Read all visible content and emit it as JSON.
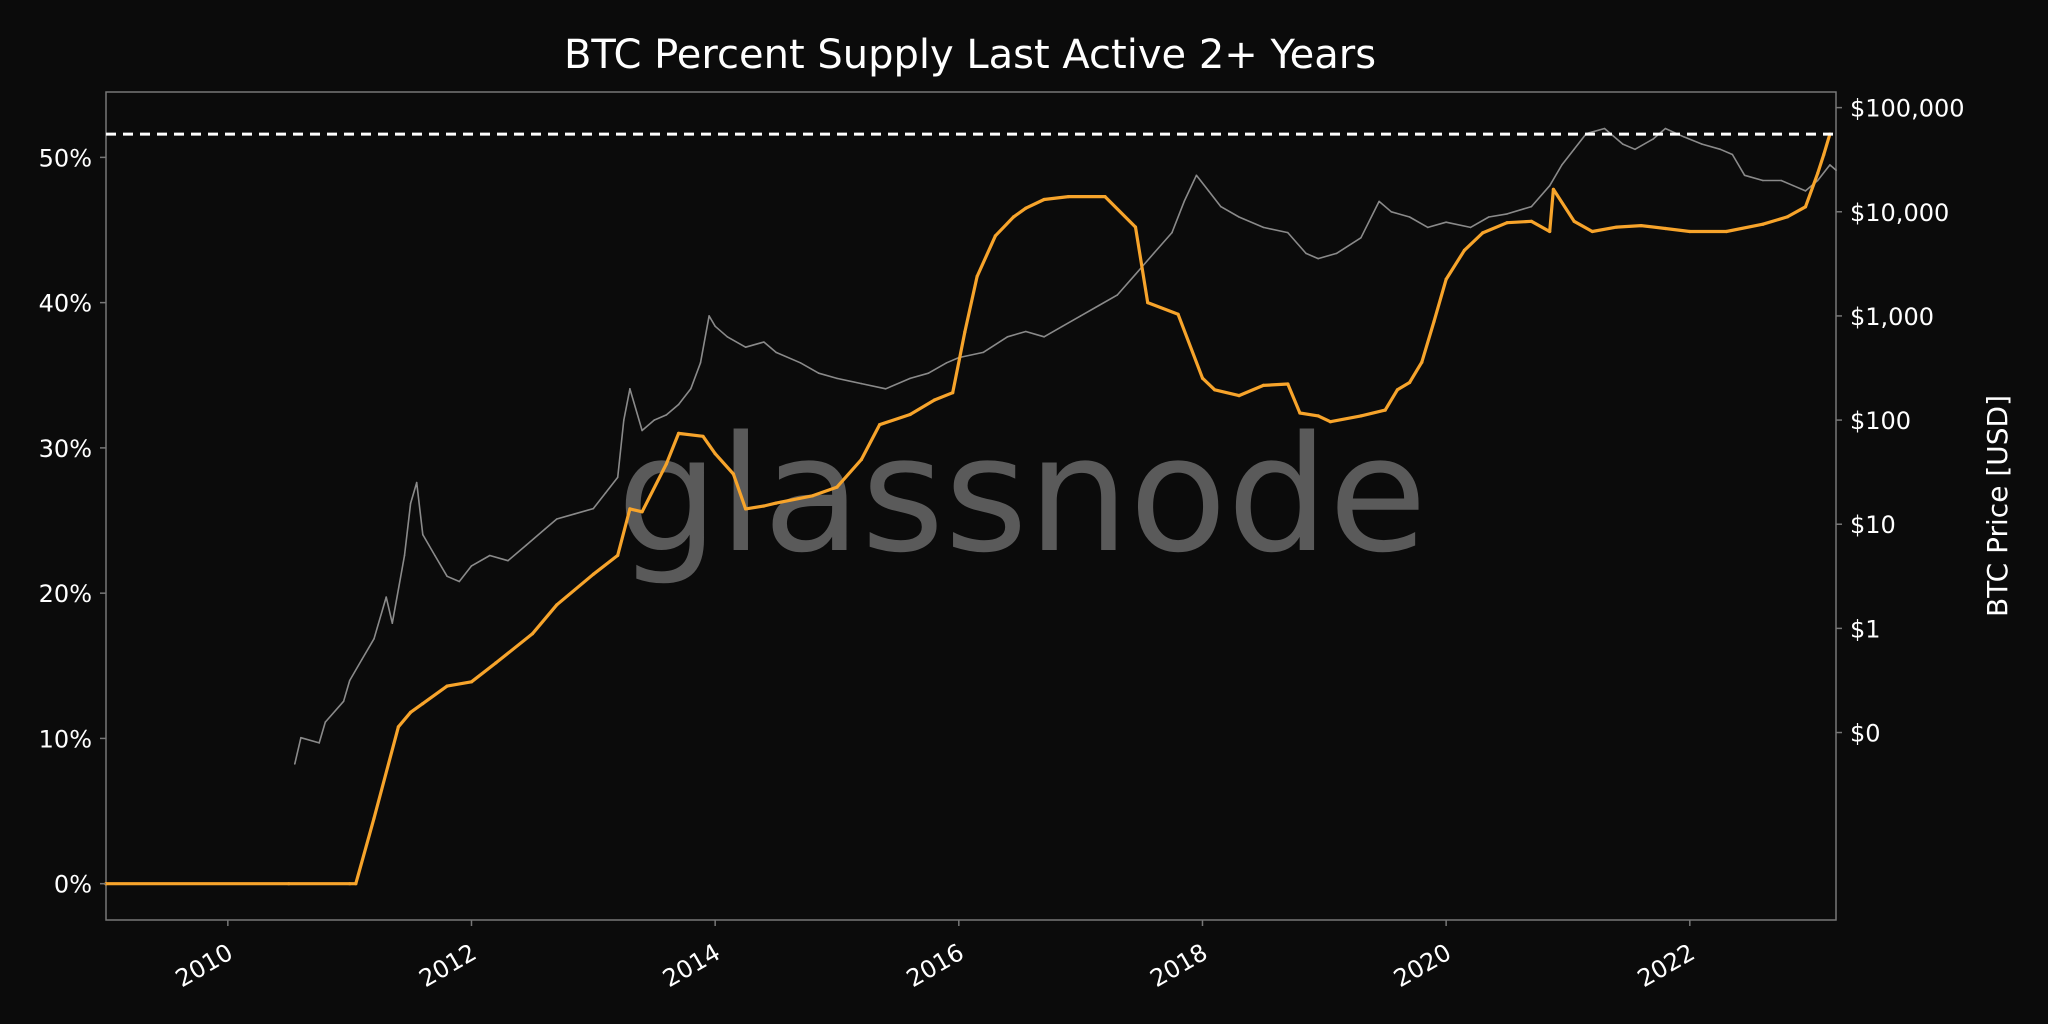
{
  "chart_data": {
    "type": "line",
    "title": "BTC Percent Supply Last Active 2+ Years",
    "watermark": "glassnode",
    "xlabel": "",
    "ylabel_left": "",
    "ylabel_right": "BTC Price [USD]",
    "xlim": [
      2009.0,
      2023.2
    ],
    "ylim_left": [
      -2.5,
      54.5
    ],
    "ylim_right_log10": [
      -2.8,
      5.15
    ],
    "x_ticks": [
      2010,
      2012,
      2014,
      2016,
      2018,
      2020,
      2022
    ],
    "x_tick_labels": [
      "2010",
      "2012",
      "2014",
      "2016",
      "2018",
      "2020",
      "2022"
    ],
    "y_left_ticks": [
      0,
      10,
      20,
      30,
      40,
      50
    ],
    "y_left_tick_labels": [
      "0%",
      "10%",
      "20%",
      "30%",
      "40%",
      "50%"
    ],
    "y_right_ticks_log10": [
      -1,
      0,
      1,
      2,
      3,
      4,
      5
    ],
    "y_right_tick_labels": [
      "$0",
      "$1",
      "$10",
      "$100",
      "$1,000",
      "$10,000",
      "$100,000"
    ],
    "reference_line": {
      "axis": "left",
      "value": 51.6,
      "style": "dashed",
      "color": "#ffffff"
    },
    "colors": {
      "background": "#0b0b0b",
      "supply": "#f7a42b",
      "price": "#8a8a8a",
      "frame": "#777777"
    },
    "series": [
      {
        "name": "Percent Supply Last Active 2+ Years",
        "axis": "left",
        "color": "#f7a42b",
        "x": [
          2009.0,
          2010.5,
          2011.0,
          2011.05,
          2011.2,
          2011.4,
          2011.5,
          2011.6,
          2011.8,
          2012.0,
          2012.2,
          2012.5,
          2012.7,
          2013.0,
          2013.2,
          2013.3,
          2013.4,
          2013.6,
          2013.7,
          2013.9,
          2014.0,
          2014.15,
          2014.25,
          2014.4,
          2014.5,
          2014.8,
          2015.0,
          2015.2,
          2015.35,
          2015.6,
          2015.8,
          2015.95,
          2016.05,
          2016.15,
          2016.3,
          2016.45,
          2016.55,
          2016.7,
          2016.9,
          2017.2,
          2017.45,
          2017.55,
          2017.8,
          2018.0,
          2018.1,
          2018.3,
          2018.5,
          2018.7,
          2018.8,
          2018.95,
          2019.05,
          2019.3,
          2019.5,
          2019.6,
          2019.7,
          2019.8,
          2019.9,
          2020.0,
          2020.15,
          2020.3,
          2020.5,
          2020.7,
          2020.85,
          2020.88,
          2021.05,
          2021.2,
          2021.4,
          2021.6,
          2021.8,
          2022.0,
          2022.3,
          2022.6,
          2022.8,
          2022.95,
          2023.05,
          2023.1,
          2023.15
        ],
        "values": [
          0,
          0,
          0,
          0,
          4.5,
          10.8,
          11.8,
          12.4,
          13.6,
          13.9,
          15.2,
          17.2,
          19.2,
          21.3,
          22.6,
          25.8,
          25.6,
          28.9,
          31.0,
          30.8,
          29.6,
          28.2,
          25.8,
          26.0,
          26.2,
          26.7,
          27.3,
          29.2,
          31.6,
          32.3,
          33.3,
          33.8,
          38.0,
          41.8,
          44.6,
          45.9,
          46.5,
          47.1,
          47.3,
          47.3,
          45.2,
          40.0,
          39.2,
          34.8,
          34.0,
          33.6,
          34.3,
          34.4,
          32.4,
          32.2,
          31.8,
          32.2,
          32.6,
          34.0,
          34.5,
          35.9,
          38.7,
          41.6,
          43.6,
          44.8,
          45.5,
          45.6,
          44.9,
          47.8,
          45.6,
          44.9,
          45.2,
          45.3,
          45.1,
          44.9,
          44.9,
          45.4,
          45.9,
          46.6,
          48.9,
          50.2,
          51.6
        ]
      },
      {
        "name": "BTC Price",
        "axis": "right",
        "color": "#8a8a8a",
        "x": [
          2010.55,
          2010.6,
          2010.75,
          2010.8,
          2010.95,
          2011.0,
          2011.1,
          2011.2,
          2011.3,
          2011.35,
          2011.45,
          2011.5,
          2011.55,
          2011.6,
          2011.7,
          2011.8,
          2011.9,
          2012.0,
          2012.15,
          2012.3,
          2012.45,
          2012.6,
          2012.7,
          2012.85,
          2013.0,
          2013.1,
          2013.2,
          2013.25,
          2013.3,
          2013.4,
          2013.5,
          2013.6,
          2013.7,
          2013.8,
          2013.88,
          2013.95,
          2014.0,
          2014.1,
          2014.25,
          2014.4,
          2014.5,
          2014.7,
          2014.85,
          2015.0,
          2015.2,
          2015.4,
          2015.6,
          2015.75,
          2015.9,
          2016.0,
          2016.2,
          2016.4,
          2016.55,
          2016.7,
          2016.85,
          2017.0,
          2017.15,
          2017.3,
          2017.45,
          2017.6,
          2017.75,
          2017.85,
          2017.95,
          2018.05,
          2018.15,
          2018.3,
          2018.5,
          2018.7,
          2018.85,
          2018.95,
          2019.1,
          2019.3,
          2019.45,
          2019.55,
          2019.7,
          2019.85,
          2020.0,
          2020.2,
          2020.35,
          2020.5,
          2020.7,
          2020.85,
          2020.95,
          2021.05,
          2021.15,
          2021.3,
          2021.45,
          2021.55,
          2021.7,
          2021.8,
          2021.95,
          2022.1,
          2022.25,
          2022.35,
          2022.45,
          2022.6,
          2022.75,
          2022.85,
          2022.95,
          2023.05,
          2023.15,
          2023.2
        ],
        "values_log10": [
          -1.3,
          -1.05,
          -1.1,
          -0.9,
          -0.7,
          -0.5,
          -0.3,
          -0.1,
          0.3,
          0.05,
          0.7,
          1.2,
          1.4,
          0.9,
          0.7,
          0.5,
          0.45,
          0.6,
          0.7,
          0.65,
          0.8,
          0.95,
          1.05,
          1.1,
          1.15,
          1.3,
          1.45,
          2.0,
          2.3,
          1.9,
          2.0,
          2.05,
          2.15,
          2.3,
          2.55,
          3.0,
          2.9,
          2.8,
          2.7,
          2.75,
          2.65,
          2.55,
          2.45,
          2.4,
          2.35,
          2.3,
          2.4,
          2.45,
          2.55,
          2.6,
          2.65,
          2.8,
          2.85,
          2.8,
          2.9,
          3.0,
          3.1,
          3.2,
          3.4,
          3.6,
          3.8,
          4.1,
          4.35,
          4.2,
          4.05,
          3.95,
          3.85,
          3.8,
          3.6,
          3.55,
          3.6,
          3.75,
          4.1,
          4.0,
          3.95,
          3.85,
          3.9,
          3.85,
          3.95,
          3.98,
          4.05,
          4.25,
          4.45,
          4.6,
          4.75,
          4.8,
          4.65,
          4.6,
          4.7,
          4.8,
          4.72,
          4.65,
          4.6,
          4.55,
          4.35,
          4.3,
          4.3,
          4.25,
          4.2,
          4.3,
          4.45,
          4.4
        ]
      }
    ]
  }
}
